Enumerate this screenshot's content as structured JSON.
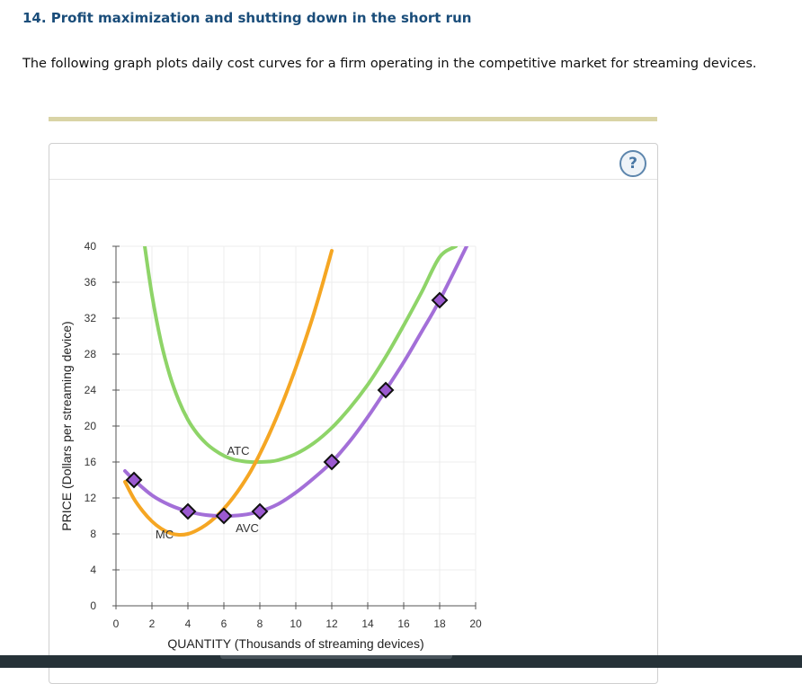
{
  "question": {
    "title": "14. Profit maximization and shutting down in the short run",
    "prompt": "The following graph plots daily cost curves for a firm operating in the competitive market for streaming devices."
  },
  "help": {
    "label": "?"
  },
  "chart_data": {
    "type": "line",
    "xlabel": "QUANTITY (Thousands of streaming devices)",
    "ylabel": "PRICE (Dollars per streaming device)",
    "xlim": [
      0,
      20
    ],
    "ylim": [
      0,
      40
    ],
    "xticks": [
      0,
      2,
      4,
      6,
      8,
      10,
      12,
      14,
      16,
      18,
      20
    ],
    "yticks": [
      0,
      4,
      8,
      12,
      16,
      20,
      24,
      28,
      32,
      36,
      40
    ],
    "grid": true,
    "series": [
      {
        "name": "ATC",
        "color": "#8ed468",
        "x": [
          1.6,
          2,
          2.5,
          3,
          3.5,
          4,
          4.5,
          5,
          5.5,
          6,
          6.5,
          7,
          7.5,
          8,
          8.5,
          9,
          10,
          11,
          12,
          13,
          14,
          15,
          16,
          17,
          18,
          18.9
        ],
        "y": [
          40,
          34.6,
          29.4,
          25.6,
          22.8,
          20.7,
          19.2,
          18.1,
          17.3,
          16.7,
          16.3,
          16.1,
          16.0,
          16.0,
          16.05,
          16.2,
          16.9,
          18.1,
          19.8,
          22,
          24.6,
          27.7,
          31.2,
          34.9,
          38.8,
          40
        ]
      },
      {
        "name": "MC",
        "color": "#f5a623",
        "x": [
          0.5,
          1,
          1.5,
          2,
          2.5,
          3,
          3.5,
          4,
          4.5,
          5,
          5.5,
          6,
          6.5,
          7,
          7.5,
          8,
          8.5,
          9,
          9.5,
          10,
          10.5,
          11,
          11.5,
          12
        ],
        "y": [
          13.8,
          11.9,
          10.5,
          9.4,
          8.6,
          8.1,
          7.9,
          8.0,
          8.4,
          9.0,
          9.8,
          10.8,
          12.0,
          13.4,
          15.0,
          16.9,
          19.0,
          21.3,
          23.8,
          26.5,
          29.4,
          32.5,
          35.9,
          39.5
        ]
      },
      {
        "name": "AVC",
        "color": "#a36fd8",
        "x": [
          0.5,
          1,
          2,
          3,
          4,
          5,
          6,
          7,
          8,
          9,
          10,
          11,
          12,
          13,
          14,
          15,
          16,
          17,
          18,
          19.5
        ],
        "y": [
          15.0,
          14.0,
          12.3,
          11.2,
          10.5,
          10.1,
          10.0,
          10.1,
          10.5,
          11.3,
          12.6,
          14.2,
          16.0,
          18.3,
          21.0,
          24.0,
          27.1,
          30.5,
          34.0,
          40
        ]
      }
    ],
    "points": [
      {
        "series": "AVC",
        "x": 1,
        "y": 14
      },
      {
        "series": "AVC",
        "x": 4,
        "y": 10.5
      },
      {
        "series": "AVC",
        "x": 6,
        "y": 10
      },
      {
        "series": "AVC",
        "x": 8,
        "y": 10.5
      },
      {
        "series": "AVC",
        "x": 12,
        "y": 16
      },
      {
        "series": "AVC",
        "x": 15,
        "y": 24
      },
      {
        "series": "AVC",
        "x": 18,
        "y": 34
      }
    ],
    "labels": [
      {
        "text": "ATC",
        "x": 6.8,
        "y": 16.8
      },
      {
        "text": "MC",
        "x": 2.7,
        "y": 7.5
      },
      {
        "text": "AVC",
        "x": 7.3,
        "y": 8.2
      }
    ],
    "marker_color": "#9b59d0"
  }
}
